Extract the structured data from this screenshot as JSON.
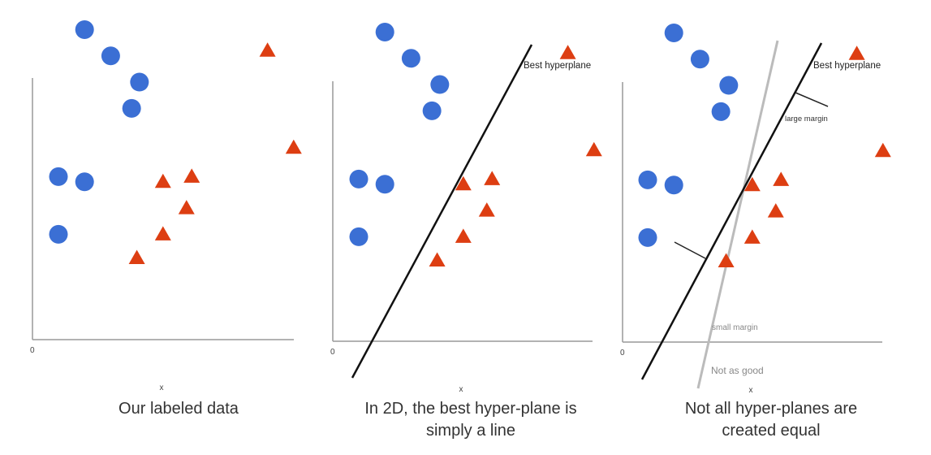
{
  "colors": {
    "circle": "#3b6fd4",
    "triangle": "#dd3e12",
    "axis": "#999999",
    "best_line": "#111111",
    "alt_line": "#bbbbbb",
    "margin_line": "#222222"
  },
  "icons": {
    "circle": "blue-circle-marker",
    "triangle": "red-triangle-marker"
  },
  "panels": [
    {
      "zero_label": "0",
      "x_label": "x",
      "caption_lines": [
        "Our labeled data"
      ],
      "circles": [
        [
          1.0,
          9.8
        ],
        [
          2.0,
          8.8
        ],
        [
          3.1,
          7.8
        ],
        [
          2.8,
          6.8
        ],
        [
          0.0,
          4.2
        ],
        [
          1.0,
          4.0
        ],
        [
          0.0,
          2.0
        ]
      ],
      "triangles": [
        [
          8.0,
          9.0
        ],
        [
          9.0,
          5.3
        ],
        [
          4.0,
          4.0
        ],
        [
          5.1,
          4.2
        ],
        [
          4.9,
          3.0
        ],
        [
          4.0,
          2.0
        ],
        [
          3.0,
          1.1
        ]
      ],
      "best_label": "",
      "small_margin_label": "",
      "large_margin_label": "",
      "not_as_good_label": ""
    },
    {
      "zero_label": "0",
      "x_label": "x",
      "caption_lines": [
        "In 2D, the best hyper-plane is",
        "simply a line"
      ],
      "circles": [
        [
          1.0,
          9.8
        ],
        [
          2.0,
          8.8
        ],
        [
          3.1,
          7.8
        ],
        [
          2.8,
          6.8
        ],
        [
          0.0,
          4.2
        ],
        [
          1.0,
          4.0
        ],
        [
          0.0,
          2.0
        ]
      ],
      "triangles": [
        [
          8.0,
          9.0
        ],
        [
          9.0,
          5.3
        ],
        [
          4.0,
          4.0
        ],
        [
          5.1,
          4.2
        ],
        [
          4.9,
          3.0
        ],
        [
          4.0,
          2.0
        ],
        [
          3.0,
          1.1
        ]
      ],
      "best_label": "Best hyperplane",
      "small_margin_label": "",
      "large_margin_label": "",
      "not_as_good_label": ""
    },
    {
      "zero_label": "0",
      "x_label": "x",
      "caption_lines": [
        "Not all hyper-planes are",
        "created equal"
      ],
      "circles": [
        [
          1.0,
          9.8
        ],
        [
          2.0,
          8.8
        ],
        [
          3.1,
          7.8
        ],
        [
          2.8,
          6.8
        ],
        [
          0.0,
          4.2
        ],
        [
          1.0,
          4.0
        ],
        [
          0.0,
          2.0
        ]
      ],
      "triangles": [
        [
          8.0,
          9.0
        ],
        [
          9.0,
          5.3
        ],
        [
          4.0,
          4.0
        ],
        [
          5.1,
          4.2
        ],
        [
          4.9,
          3.0
        ],
        [
          4.0,
          2.0
        ],
        [
          3.0,
          1.1
        ]
      ],
      "best_label": "Best hyperplane",
      "small_margin_label": "small margin",
      "large_margin_label": "large margin",
      "not_as_good_label": "Not as good"
    }
  ]
}
